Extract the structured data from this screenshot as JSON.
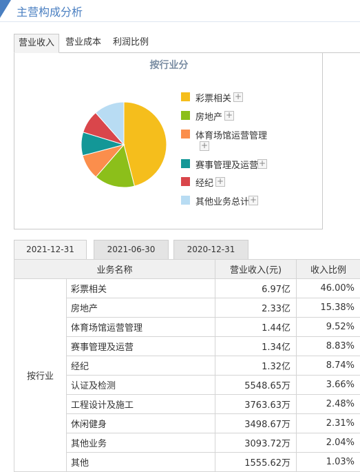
{
  "header": {
    "title": "主营构成分析"
  },
  "tabs": [
    {
      "label": "营业收入",
      "active": true
    },
    {
      "label": "营业成本",
      "active": false
    },
    {
      "label": "利润比例",
      "active": false
    }
  ],
  "chart_data": {
    "type": "pie",
    "title": "按行业分",
    "categories": [
      "彩票相关",
      "房地产",
      "体育场馆运营管理",
      "赛事管理及运营",
      "经纪",
      "其他业务总计"
    ],
    "values": [
      46.0,
      15.38,
      9.52,
      8.83,
      8.74,
      11.53
    ],
    "colors": [
      "#f5be1c",
      "#8cbf1a",
      "#fb8e4c",
      "#139797",
      "#d9464b",
      "#b8dcf3"
    ],
    "legend_position": "right"
  },
  "date_tabs": [
    {
      "label": "2021-12-31",
      "active": true
    },
    {
      "label": "2021-06-30",
      "active": false
    },
    {
      "label": "2020-12-31",
      "active": false
    }
  ],
  "table": {
    "headers": [
      "业务名称",
      "营业收入(元)",
      "收入比例"
    ],
    "group_label": "按行业",
    "rows": [
      {
        "name": "彩票相关",
        "revenue": "6.97亿",
        "ratio": "46.00%"
      },
      {
        "name": "房地产",
        "revenue": "2.33亿",
        "ratio": "15.38%"
      },
      {
        "name": "体育场馆运营管理",
        "revenue": "1.44亿",
        "ratio": "9.52%"
      },
      {
        "name": "赛事管理及运营",
        "revenue": "1.34亿",
        "ratio": "8.83%"
      },
      {
        "name": "经纪",
        "revenue": "1.32亿",
        "ratio": "8.74%"
      },
      {
        "name": "认证及检测",
        "revenue": "5548.65万",
        "ratio": "3.66%"
      },
      {
        "name": "工程设计及施工",
        "revenue": "3763.63万",
        "ratio": "2.48%"
      },
      {
        "name": "休闲健身",
        "revenue": "3498.67万",
        "ratio": "2.31%"
      },
      {
        "name": "其他业务",
        "revenue": "3093.72万",
        "ratio": "2.04%"
      },
      {
        "name": "其他",
        "revenue": "1555.62万",
        "ratio": "1.03%"
      }
    ]
  }
}
